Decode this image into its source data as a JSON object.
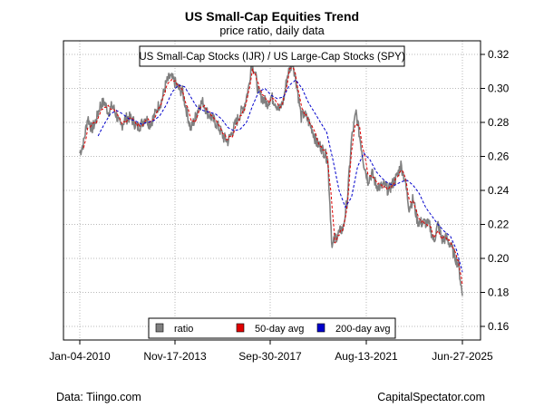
{
  "header": {
    "title": "US Small-Cap Equities Trend",
    "subtitle": "price ratio, daily data"
  },
  "footer": {
    "source": "Data: Tiingo.com",
    "credit": "CapitalSpectator.com"
  },
  "chart_data": {
    "type": "line",
    "title": "US Small-Cap Equities Trend",
    "subtitle": "price ratio, daily data",
    "inner_title": "US Small-Cap Stocks (IJR) / US Large-Cap Stocks (SPY)",
    "xlim": [
      "2010-01-04",
      "2025-06-27"
    ],
    "ylim": [
      0.15,
      0.33
    ],
    "x_ticks": [
      "Jan-04-2010",
      "Nov-17-2013",
      "Sep-30-2017",
      "Aug-13-2021",
      "Jun-27-2025"
    ],
    "y_ticks": [
      0.16,
      0.18,
      0.2,
      0.22,
      0.24,
      0.26,
      0.28,
      0.3,
      0.32
    ],
    "y_tick_labels": [
      "0.16",
      "0.18",
      "0.20",
      "0.22",
      "0.24",
      "0.26",
      "0.28",
      "0.30",
      "0.32"
    ],
    "grid": true,
    "legend_position": "bottom-center",
    "legend": [
      {
        "label": "ratio",
        "color": "#808080"
      },
      {
        "label": "50-day avg",
        "color": "#e00000"
      },
      {
        "label": "200-day avg",
        "color": "#0000cc"
      }
    ],
    "series": [
      {
        "name": "ratio",
        "color": "#808080",
        "x": [
          "2010-01-04",
          "2010-03-01",
          "2010-05-01",
          "2010-07-01",
          "2010-09-01",
          "2010-11-01",
          "2011-01-01",
          "2011-03-01",
          "2011-05-01",
          "2011-07-01",
          "2011-09-01",
          "2011-11-01",
          "2012-01-01",
          "2012-03-01",
          "2012-05-01",
          "2012-07-01",
          "2012-09-01",
          "2012-11-01",
          "2013-01-01",
          "2013-03-01",
          "2013-05-01",
          "2013-07-01",
          "2013-09-01",
          "2013-11-01",
          "2014-01-01",
          "2014-03-01",
          "2014-05-01",
          "2014-07-01",
          "2014-09-01",
          "2014-11-01",
          "2015-01-01",
          "2015-03-01",
          "2015-05-01",
          "2015-07-01",
          "2015-09-01",
          "2015-11-01",
          "2016-01-01",
          "2016-03-01",
          "2016-05-01",
          "2016-07-01",
          "2016-09-01",
          "2016-11-01",
          "2016-12-15",
          "2017-02-01",
          "2017-04-01",
          "2017-06-01",
          "2017-08-01",
          "2017-10-01",
          "2017-12-01",
          "2018-02-01",
          "2018-04-01",
          "2018-06-01",
          "2018-08-15",
          "2018-10-15",
          "2018-12-20",
          "2019-02-01",
          "2019-04-01",
          "2019-06-01",
          "2019-08-01",
          "2019-10-01",
          "2019-12-01",
          "2020-01-15",
          "2020-03-20",
          "2020-05-01",
          "2020-07-01",
          "2020-09-01",
          "2020-11-01",
          "2021-01-01",
          "2021-03-10",
          "2021-05-01",
          "2021-07-01",
          "2021-09-01",
          "2021-11-01",
          "2022-01-01",
          "2022-03-01",
          "2022-05-01",
          "2022-07-01",
          "2022-09-01",
          "2022-11-01",
          "2023-01-01",
          "2023-03-01",
          "2023-05-01",
          "2023-07-01",
          "2023-09-01",
          "2023-11-01",
          "2024-01-01",
          "2024-03-01",
          "2024-05-01",
          "2024-07-01",
          "2024-09-01",
          "2024-11-01",
          "2025-01-01",
          "2025-03-01",
          "2025-05-01",
          "2025-06-27"
        ],
        "values": [
          0.262,
          0.268,
          0.283,
          0.276,
          0.281,
          0.29,
          0.292,
          0.286,
          0.29,
          0.284,
          0.277,
          0.282,
          0.283,
          0.281,
          0.277,
          0.279,
          0.283,
          0.279,
          0.283,
          0.289,
          0.293,
          0.303,
          0.307,
          0.304,
          0.3,
          0.298,
          0.287,
          0.276,
          0.282,
          0.29,
          0.292,
          0.286,
          0.283,
          0.28,
          0.276,
          0.271,
          0.269,
          0.274,
          0.28,
          0.285,
          0.29,
          0.3,
          0.315,
          0.31,
          0.297,
          0.294,
          0.291,
          0.295,
          0.292,
          0.287,
          0.293,
          0.308,
          0.316,
          0.302,
          0.283,
          0.285,
          0.281,
          0.276,
          0.268,
          0.266,
          0.262,
          0.258,
          0.206,
          0.212,
          0.215,
          0.218,
          0.235,
          0.27,
          0.286,
          0.272,
          0.256,
          0.246,
          0.25,
          0.243,
          0.242,
          0.243,
          0.24,
          0.244,
          0.248,
          0.255,
          0.246,
          0.23,
          0.235,
          0.222,
          0.221,
          0.221,
          0.219,
          0.21,
          0.22,
          0.211,
          0.212,
          0.208,
          0.202,
          0.196,
          0.178
        ]
      },
      {
        "name": "50-day avg",
        "color": "#e00000",
        "x": [
          "2010-03-01",
          "2010-05-01",
          "2010-07-01",
          "2010-09-01",
          "2010-11-01",
          "2011-01-01",
          "2011-03-01",
          "2011-05-01",
          "2011-07-01",
          "2011-09-01",
          "2011-11-01",
          "2012-01-01",
          "2012-03-01",
          "2012-05-01",
          "2012-07-01",
          "2012-09-01",
          "2012-11-01",
          "2013-01-01",
          "2013-03-01",
          "2013-05-01",
          "2013-07-01",
          "2013-09-01",
          "2013-11-01",
          "2014-01-01",
          "2014-03-01",
          "2014-05-01",
          "2014-07-01",
          "2014-09-01",
          "2014-11-01",
          "2015-01-01",
          "2015-03-01",
          "2015-05-01",
          "2015-07-01",
          "2015-09-01",
          "2015-11-01",
          "2016-01-01",
          "2016-03-01",
          "2016-05-01",
          "2016-07-01",
          "2016-09-01",
          "2016-11-01",
          "2017-01-01",
          "2017-03-01",
          "2017-05-01",
          "2017-07-01",
          "2017-09-01",
          "2017-11-01",
          "2018-01-01",
          "2018-03-01",
          "2018-05-01",
          "2018-07-01",
          "2018-09-01",
          "2018-11-01",
          "2019-01-01",
          "2019-03-01",
          "2019-05-01",
          "2019-07-01",
          "2019-09-01",
          "2019-11-01",
          "2020-01-01",
          "2020-03-01",
          "2020-05-01",
          "2020-07-01",
          "2020-09-01",
          "2020-11-01",
          "2021-01-01",
          "2021-03-01",
          "2021-05-01",
          "2021-07-01",
          "2021-09-01",
          "2021-11-01",
          "2022-01-01",
          "2022-03-01",
          "2022-05-01",
          "2022-07-01",
          "2022-09-01",
          "2022-11-01",
          "2023-01-01",
          "2023-03-01",
          "2023-05-01",
          "2023-07-01",
          "2023-09-01",
          "2023-11-01",
          "2024-01-01",
          "2024-03-01",
          "2024-05-01",
          "2024-07-01",
          "2024-09-01",
          "2024-11-01",
          "2025-01-01",
          "2025-03-01",
          "2025-05-01",
          "2025-06-27"
        ],
        "values": [
          0.265,
          0.276,
          0.279,
          0.28,
          0.286,
          0.29,
          0.289,
          0.288,
          0.286,
          0.28,
          0.28,
          0.282,
          0.282,
          0.279,
          0.278,
          0.281,
          0.281,
          0.282,
          0.287,
          0.292,
          0.3,
          0.305,
          0.305,
          0.302,
          0.298,
          0.291,
          0.281,
          0.28,
          0.287,
          0.29,
          0.288,
          0.284,
          0.281,
          0.277,
          0.273,
          0.27,
          0.272,
          0.278,
          0.283,
          0.288,
          0.298,
          0.311,
          0.306,
          0.298,
          0.294,
          0.292,
          0.294,
          0.291,
          0.289,
          0.298,
          0.311,
          0.312,
          0.3,
          0.287,
          0.284,
          0.28,
          0.275,
          0.268,
          0.265,
          0.261,
          0.24,
          0.21,
          0.214,
          0.218,
          0.232,
          0.262,
          0.28,
          0.276,
          0.262,
          0.25,
          0.248,
          0.245,
          0.243,
          0.242,
          0.241,
          0.243,
          0.247,
          0.252,
          0.249,
          0.235,
          0.233,
          0.226,
          0.222,
          0.221,
          0.219,
          0.213,
          0.217,
          0.212,
          0.212,
          0.209,
          0.204,
          0.198,
          0.184
        ]
      },
      {
        "name": "200-day avg",
        "color": "#0000cc",
        "x": [
          "2010-10-01",
          "2011-01-01",
          "2011-04-01",
          "2011-07-01",
          "2011-10-01",
          "2012-01-01",
          "2012-04-01",
          "2012-07-01",
          "2012-10-01",
          "2013-01-01",
          "2013-04-01",
          "2013-07-01",
          "2013-10-01",
          "2014-01-01",
          "2014-04-01",
          "2014-07-01",
          "2014-10-01",
          "2015-01-01",
          "2015-04-01",
          "2015-07-01",
          "2015-10-01",
          "2016-01-01",
          "2016-04-01",
          "2016-07-01",
          "2016-10-01",
          "2017-01-01",
          "2017-04-01",
          "2017-07-01",
          "2017-10-01",
          "2018-01-01",
          "2018-04-01",
          "2018-07-01",
          "2018-10-01",
          "2019-01-01",
          "2019-04-01",
          "2019-07-01",
          "2019-10-01",
          "2020-01-01",
          "2020-04-01",
          "2020-07-01",
          "2020-10-01",
          "2021-01-01",
          "2021-04-01",
          "2021-07-01",
          "2021-10-01",
          "2022-01-01",
          "2022-04-01",
          "2022-07-01",
          "2022-10-01",
          "2023-01-01",
          "2023-04-01",
          "2023-07-01",
          "2023-10-01",
          "2024-01-01",
          "2024-04-01",
          "2024-07-01",
          "2024-10-01",
          "2025-01-01",
          "2025-04-01",
          "2025-06-27"
        ],
        "values": [
          0.272,
          0.279,
          0.285,
          0.287,
          0.285,
          0.282,
          0.281,
          0.279,
          0.28,
          0.281,
          0.284,
          0.29,
          0.298,
          0.302,
          0.301,
          0.295,
          0.289,
          0.287,
          0.286,
          0.285,
          0.282,
          0.277,
          0.275,
          0.276,
          0.28,
          0.29,
          0.298,
          0.3,
          0.296,
          0.294,
          0.295,
          0.302,
          0.305,
          0.3,
          0.292,
          0.286,
          0.28,
          0.274,
          0.258,
          0.24,
          0.23,
          0.236,
          0.254,
          0.262,
          0.258,
          0.251,
          0.247,
          0.244,
          0.243,
          0.245,
          0.246,
          0.243,
          0.238,
          0.23,
          0.225,
          0.22,
          0.216,
          0.213,
          0.205,
          0.192
        ]
      }
    ]
  }
}
